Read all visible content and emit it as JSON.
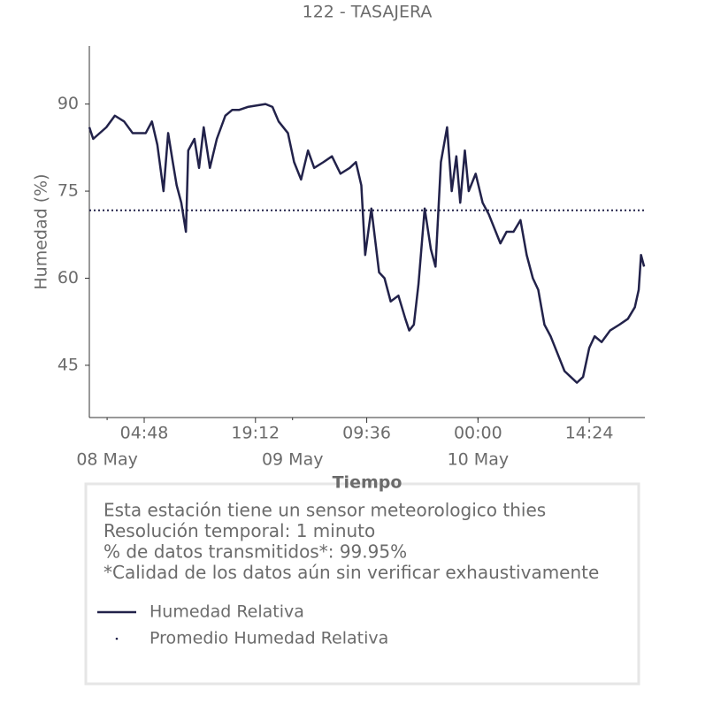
{
  "chart_data": {
    "type": "line",
    "title": "122 - TASAJERA",
    "xlabel": "Tiempo",
    "ylabel": "Humedad (%)",
    "x": [
      -2.3,
      -1.8,
      -0.1,
      1.0,
      2.2,
      3.3,
      4.5,
      5.0,
      5.8,
      6.5,
      7.3,
      7.9,
      8.5,
      9.0,
      9.6,
      10.2,
      10.5,
      11.3,
      11.9,
      12.5,
      13.3,
      14.2,
      15.3,
      16.2,
      17.1,
      18.2,
      20.5,
      21.4,
      22.2,
      23.4,
      24.2,
      25.1,
      26.0,
      26.8,
      28.0,
      29.1,
      30.2,
      31.4,
      32.2,
      32.9,
      33.4,
      34.2,
      35.2,
      35.9,
      36.7,
      37.7,
      38.6,
      39.1,
      39.7,
      40.3,
      41.1,
      41.9,
      42.5,
      43.2,
      44.0,
      44.6,
      45.2,
      45.7,
      46.3,
      46.8,
      47.7,
      48.6,
      49.4,
      50.3,
      50.9,
      51.7,
      52.6,
      53.5,
      54.3,
      55.1,
      55.8,
      56.6,
      57.4,
      58.3,
      59.2,
      60.0,
      60.8,
      61.6,
      62.4,
      63.1,
      64.0,
      65.1,
      66.3,
      67.4,
      68.3,
      68.8,
      69.1,
      69.5
    ],
    "series": [
      {
        "name": "Humedad Relativa",
        "color": "#22224a",
        "values": [
          86,
          84,
          86,
          88,
          87,
          85,
          85,
          85,
          87,
          83,
          75,
          85,
          80,
          76,
          73,
          68,
          82,
          84,
          79,
          86,
          79,
          84,
          88,
          89,
          89,
          89.5,
          90,
          89.5,
          87,
          85,
          80,
          77,
          82,
          79,
          80,
          81,
          78,
          79,
          80,
          76,
          64,
          72,
          61,
          60,
          56,
          57,
          53,
          51,
          52,
          59,
          72,
          65,
          62,
          80,
          86,
          75,
          81,
          73,
          82,
          75,
          78,
          73,
          71,
          68,
          66,
          68,
          68,
          70,
          64,
          60,
          58,
          52,
          50,
          47,
          44,
          43,
          42,
          43,
          48,
          50,
          49,
          51,
          52,
          53,
          55,
          58,
          64,
          62
        ]
      }
    ],
    "mean_line": {
      "name": "Promedio Humedad Relativa",
      "value": 71.7,
      "color": "#22224a"
    },
    "xlim": [
      -2.3,
      69.6
    ],
    "xticks": [
      {
        "value": 4.8,
        "label": "04:48"
      },
      {
        "value": 19.2,
        "label": "19:12"
      },
      {
        "value": 33.6,
        "label": "09:36"
      },
      {
        "value": 48,
        "label": "00:00"
      },
      {
        "value": 62.4,
        "label": "14:24"
      }
    ],
    "date_ticks": [
      {
        "value": 0,
        "label": "08 May"
      },
      {
        "value": 24,
        "label": "09 May"
      },
      {
        "value": 48,
        "label": "10 May"
      }
    ],
    "ylim": [
      36,
      100
    ],
    "yticks": [
      45,
      60,
      75,
      90
    ],
    "notes": [
      "Esta estación tiene un sensor meteorologico thies",
      "Resolución temporal: 1 minuto",
      "% de datos transmitidos*: 99.95%",
      "*Calidad de los datos aún sin verificar exhaustivamente"
    ]
  }
}
